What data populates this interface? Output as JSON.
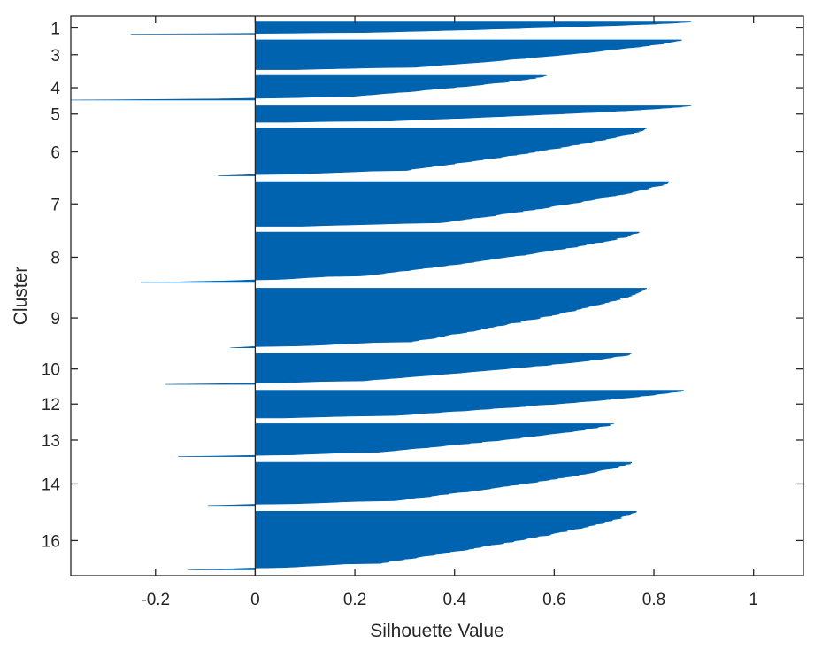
{
  "chart_data": {
    "type": "silhouette",
    "xlabel": "Silhouette Value",
    "ylabel": "Cluster",
    "xlim": [
      -0.37,
      1.1
    ],
    "xticks": [
      -0.2,
      0,
      0.2,
      0.4,
      0.6,
      0.8,
      1
    ],
    "xtick_labels": [
      "-0.2",
      "0",
      "0.2",
      "0.4",
      "0.6",
      "0.8",
      "1"
    ],
    "grid": false,
    "colors": {
      "bars": "#0063b0",
      "axis": "#262626",
      "background": "#ffffff"
    },
    "clusters": [
      {
        "label": "1",
        "size": 2.4,
        "max": 0.875,
        "min": -0.25
      },
      {
        "label": "3",
        "size": 5.8,
        "max": 0.855,
        "min": 0
      },
      {
        "label": "4",
        "size": 4.8,
        "max": 0.585,
        "min": -0.37
      },
      {
        "label": "5",
        "size": 3.2,
        "max": 0.875,
        "min": 0
      },
      {
        "label": "6",
        "size": 9.3,
        "max": 0.785,
        "min": -0.075
      },
      {
        "label": "7",
        "size": 8.7,
        "max": 0.83,
        "min": 0
      },
      {
        "label": "8",
        "size": 9.8,
        "max": 0.77,
        "min": -0.23
      },
      {
        "label": "9",
        "size": 11.6,
        "max": 0.785,
        "min": -0.05
      },
      {
        "label": "10",
        "size": 6.0,
        "max": 0.755,
        "min": -0.18
      },
      {
        "label": "12",
        "size": 5.4,
        "max": 0.86,
        "min": 0
      },
      {
        "label": "13",
        "size": 6.4,
        "max": 0.72,
        "min": -0.155
      },
      {
        "label": "14",
        "size": 8.4,
        "max": 0.755,
        "min": -0.095
      },
      {
        "label": "16",
        "size": 11.4,
        "max": 0.765,
        "min": -0.135
      }
    ]
  }
}
